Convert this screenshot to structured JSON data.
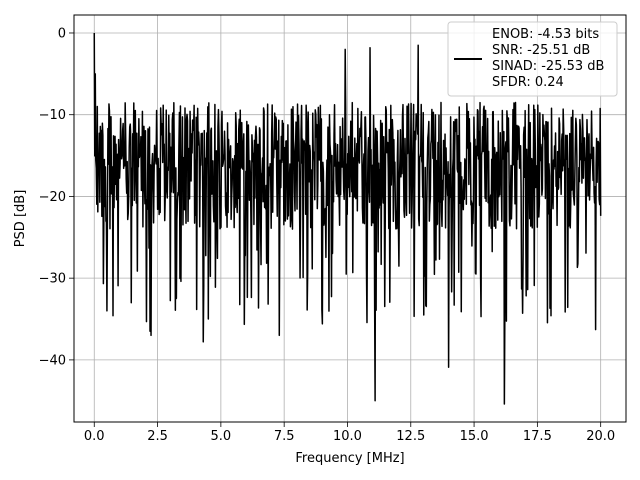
{
  "chart_data": {
    "type": "line",
    "title": "",
    "xlabel": "Frequency [MHz]",
    "ylabel": "PSD [dB]",
    "xlim": [
      -0.8,
      21.0
    ],
    "ylim": [
      -47.6,
      2.2
    ],
    "xticks": [
      0.0,
      2.5,
      5.0,
      7.5,
      10.0,
      12.5,
      15.0,
      17.5,
      20.0
    ],
    "xtick_labels": [
      "0.0",
      "2.5",
      "5.0",
      "7.5",
      "10.0",
      "12.5",
      "15.0",
      "17.5",
      "20.0"
    ],
    "yticks": [
      0,
      -10,
      -20,
      -30,
      -40
    ],
    "ytick_labels": [
      "0",
      "−10",
      "−20",
      "−30",
      "−40"
    ],
    "grid": true,
    "legend_position": "top-right",
    "line_color": "#000000",
    "grid_color": "#b0b0b0",
    "legend": {
      "lines": [
        "ENOB: -4.53 bits",
        "SNR: -25.51 dB",
        "SINAD: -25.53 dB",
        "SFDR: 0.24"
      ]
    },
    "series": [
      {
        "x_start": 0.0,
        "x_end": 20.0,
        "num_points": 1000,
        "seed": 12345,
        "noise_floor_max": -8.5,
        "noise_floor_min": -24.0,
        "notable_points": [
          {
            "x": 0.0,
            "y": 0.0
          },
          {
            "x": 0.05,
            "y": -5.0
          },
          {
            "x": 0.12,
            "y": -9.0
          },
          {
            "x": 0.5,
            "y": -34.0
          },
          {
            "x": 0.75,
            "y": -34.6
          },
          {
            "x": 2.2,
            "y": -36.5
          },
          {
            "x": 2.25,
            "y": -37.0
          },
          {
            "x": 4.3,
            "y": -37.8
          },
          {
            "x": 4.5,
            "y": -35.0
          },
          {
            "x": 7.3,
            "y": -37.0
          },
          {
            "x": 11.1,
            "y": -45.0
          },
          {
            "x": 14.0,
            "y": -40.9
          },
          {
            "x": 16.2,
            "y": -45.4
          },
          {
            "x": 19.8,
            "y": -36.3
          },
          {
            "x": 9.9,
            "y": -2.0
          },
          {
            "x": 10.9,
            "y": -1.8
          },
          {
            "x": 12.8,
            "y": -1.5
          }
        ]
      }
    ]
  }
}
